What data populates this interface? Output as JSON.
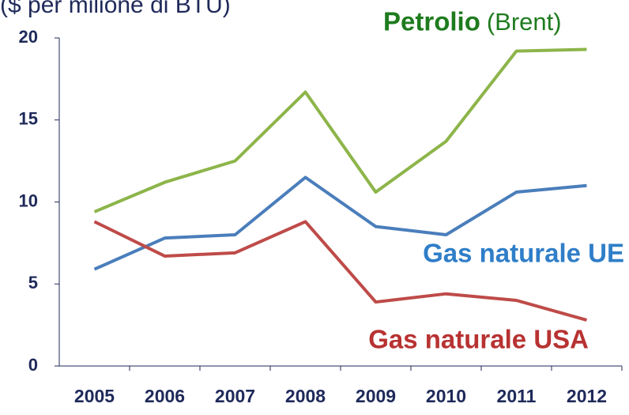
{
  "chart_data": {
    "type": "line",
    "title": "($ per milione di BTU)",
    "categories": [
      "2005",
      "2006",
      "2007",
      "2008",
      "2009",
      "2010",
      "2011",
      "2012"
    ],
    "series": [
      {
        "name": "Petrolio",
        "color": "#8db54a",
        "label_color": "#1e7b1e",
        "values": [
          9.4,
          11.2,
          12.5,
          16.7,
          10.6,
          13.7,
          19.2,
          19.3
        ]
      },
      {
        "name": "Gas naturale UE",
        "color": "#4a7ebb",
        "label_color": "#2f7ec8",
        "values": [
          5.9,
          7.8,
          8.0,
          11.5,
          8.5,
          8.0,
          10.6,
          11.0
        ]
      },
      {
        "name": "Gas naturale USA",
        "color": "#be4b48",
        "label_color": "#b83232",
        "values": [
          8.8,
          6.7,
          6.9,
          8.8,
          3.9,
          4.4,
          4.0,
          2.8
        ]
      }
    ],
    "annotations": [
      "(Brent)"
    ],
    "ylim": [
      0,
      20
    ],
    "yticks": [
      0,
      5,
      10,
      15,
      20
    ]
  }
}
